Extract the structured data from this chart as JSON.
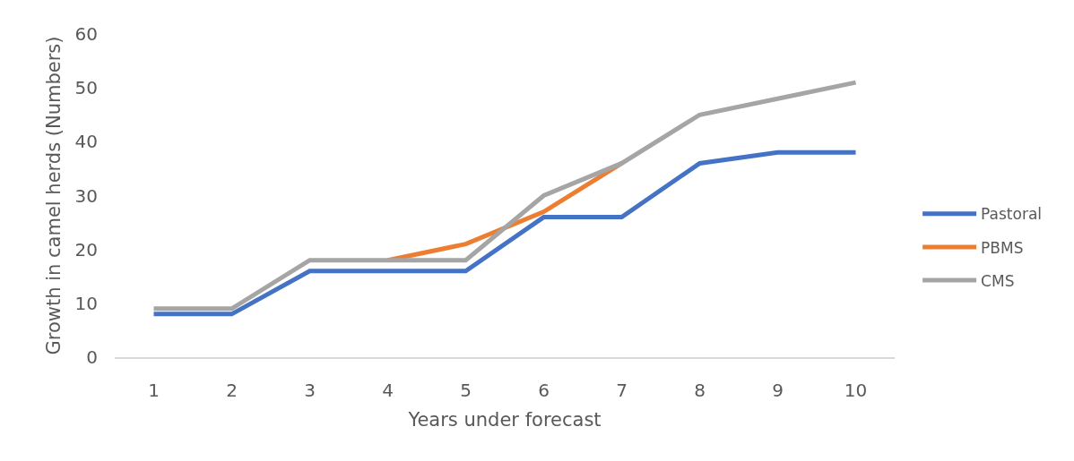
{
  "chart_data": {
    "type": "line",
    "xlabel": "Years under forecast",
    "ylabel": "Growth in camel herds (Numbers)",
    "categories": [
      "1",
      "2",
      "3",
      "4",
      "5",
      "6",
      "7",
      "8",
      "9",
      "10"
    ],
    "series": [
      {
        "name": "Pastoral",
        "color": "#4472c4",
        "values": [
          8,
          8,
          16,
          16,
          16,
          26,
          26,
          36,
          38,
          38
        ]
      },
      {
        "name": "PBMS",
        "color": "#ed7d31",
        "values": [
          null,
          null,
          null,
          18,
          21,
          27,
          36,
          null,
          null,
          null
        ]
      },
      {
        "name": "CMS",
        "color": "#a5a5a5",
        "values": [
          9,
          9,
          18,
          18,
          18,
          30,
          36,
          45,
          48,
          51
        ]
      }
    ],
    "ylim": [
      0,
      60
    ],
    "yticks": [
      0,
      10,
      20,
      30,
      40,
      50,
      60
    ],
    "grid": false,
    "legend": "right",
    "marker": "none",
    "line_style": "solid"
  }
}
